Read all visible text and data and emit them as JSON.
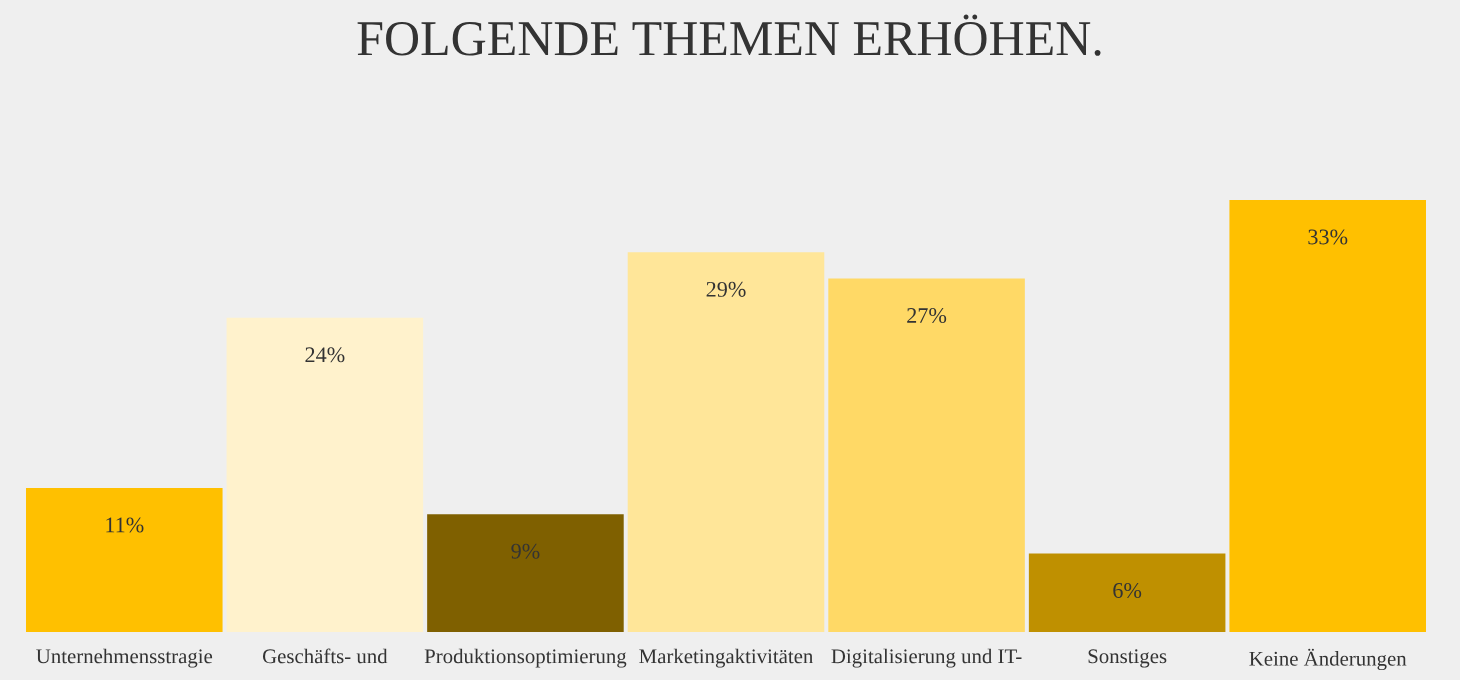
{
  "chart_data": {
    "type": "bar",
    "title": "FOLGENDE THEMEN ERHÖHEN.",
    "categories": [
      "Unternehmensstragie",
      "Geschäfts- und",
      "Produktionsoptimierung",
      "Marketingaktivitäten",
      "Digitalisierung und IT-",
      "Sonstiges",
      "Keine Änderungen"
    ],
    "values": [
      11,
      24,
      9,
      29,
      27,
      6,
      33
    ],
    "colors": [
      "#ffc000",
      "#fff2cc",
      "#7f6000",
      "#ffe699",
      "#ffd966",
      "#bf9000",
      "#ffc000"
    ],
    "value_labels": [
      "11%",
      "24%",
      "9%",
      "29%",
      "27%",
      "6%",
      "33%"
    ],
    "relative": false,
    "grid": false,
    "legend": false
  }
}
